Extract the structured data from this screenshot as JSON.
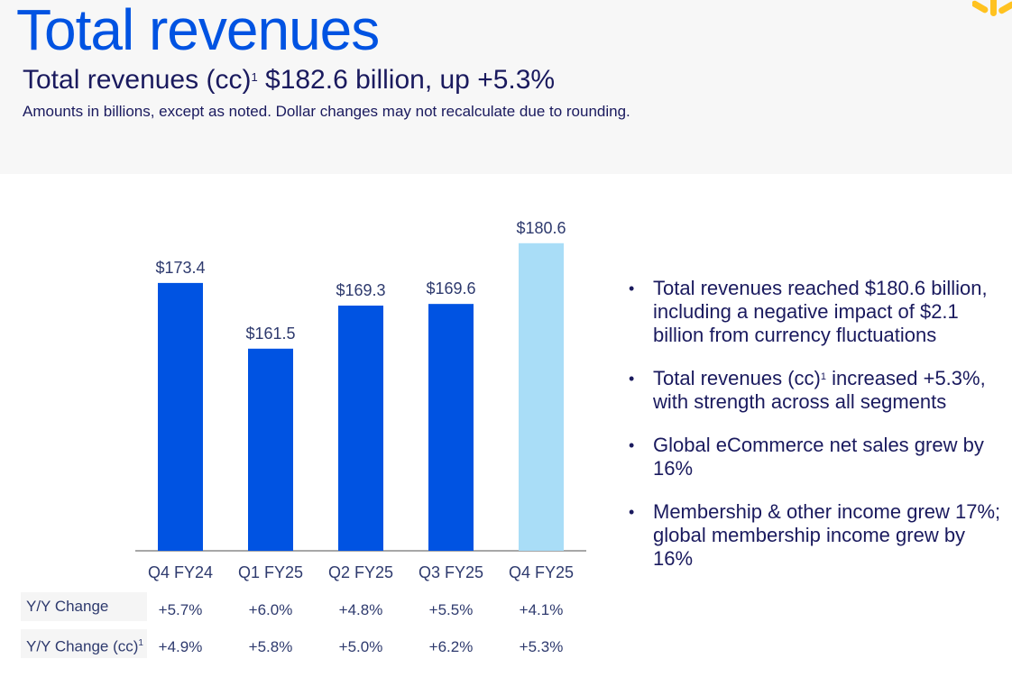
{
  "header": {
    "title": "Total revenues",
    "subtitle_pre": "Total revenues (cc)",
    "subtitle_sup": "1",
    "subtitle_post": " $182.6 billion, up +5.3%",
    "note": "Amounts in billions, except as noted.  Dollar changes may not recalculate due to rounding.",
    "logo_icon": "walmart-spark-icon"
  },
  "colors": {
    "primary_bar": "#0053e2",
    "highlight_bar": "#a9ddf7",
    "title": "#0053e2",
    "spark": "#ffc220"
  },
  "chart_data": {
    "type": "bar",
    "title": "",
    "categories": [
      "Q4 FY24",
      "Q1 FY25",
      "Q2 FY25",
      "Q3 FY25",
      "Q4 FY25"
    ],
    "values": [
      173.4,
      161.5,
      169.3,
      169.6,
      180.6
    ],
    "data_labels": [
      "$173.4",
      "$161.5",
      "$169.3",
      "$169.6",
      "$180.6"
    ],
    "highlight_index": 4,
    "xlabel": "",
    "ylabel": "",
    "ylim": [
      125,
      185
    ],
    "grid": false
  },
  "table": {
    "rows": [
      {
        "label": "Y/Y Change",
        "sup": "",
        "values": [
          "+5.7%",
          "+6.0%",
          "+4.8%",
          "+5.5%",
          "+4.1%"
        ]
      },
      {
        "label": "Y/Y Change (cc)",
        "sup": "1",
        "values": [
          "+4.9%",
          "+5.8%",
          "+5.0%",
          "+6.2%",
          "+5.3%"
        ]
      }
    ]
  },
  "bullets": [
    {
      "pre": "Total revenues reached $180.6 billion, including a negative impact of $2.1 billion from currency fluctuations",
      "sup": "",
      "post": ""
    },
    {
      "pre": "Total revenues (cc)",
      "sup": "1",
      "post": " increased +5.3%, with strength across all segments"
    },
    {
      "pre": "Global eCommerce net sales grew by 16%",
      "sup": "",
      "post": ""
    },
    {
      "pre": "Membership & other income grew 17%; global membership income grew by 16%",
      "sup": "",
      "post": ""
    }
  ]
}
